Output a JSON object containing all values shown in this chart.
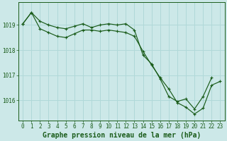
{
  "title": "Graphe pression niveau de la mer (hPa)",
  "bg_color": "#cce8e8",
  "grid_color": "#b0d8d8",
  "line_color": "#1a5c1a",
  "xlim": [
    -0.5,
    23.5
  ],
  "ylim": [
    1015.2,
    1019.9
  ],
  "yticks": [
    1016,
    1017,
    1018,
    1019
  ],
  "xticks": [
    0,
    1,
    2,
    3,
    4,
    5,
    6,
    7,
    8,
    9,
    10,
    11,
    12,
    13,
    14,
    15,
    16,
    17,
    18,
    19,
    20,
    21,
    22,
    23
  ],
  "series1_x": [
    0,
    1,
    2,
    3,
    4,
    5,
    6,
    7,
    8,
    9,
    10,
    11,
    12,
    13,
    14,
    15,
    16,
    17,
    18,
    19,
    20,
    21,
    22
  ],
  "series1_y": [
    1019.05,
    1019.5,
    1019.15,
    1019.0,
    1018.9,
    1018.85,
    1018.95,
    1019.05,
    1018.9,
    1019.0,
    1019.05,
    1019.0,
    1019.05,
    1018.8,
    1017.8,
    1017.45,
    1016.85,
    1016.15,
    1015.95,
    1016.05,
    1015.65,
    1016.15,
    1016.9
  ],
  "series2_x": [
    0,
    1,
    2,
    3,
    4,
    5,
    6,
    7,
    8,
    9,
    10,
    11,
    12,
    13,
    14,
    15,
    16,
    17,
    18,
    19,
    20,
    21,
    22,
    23
  ],
  "series2_y": [
    1019.05,
    1019.5,
    1018.85,
    1018.7,
    1018.55,
    1018.5,
    1018.65,
    1018.8,
    1018.8,
    1018.75,
    1018.8,
    1018.75,
    1018.7,
    1018.55,
    1017.95,
    1017.4,
    1016.9,
    1016.45,
    1015.9,
    1015.72,
    1015.45,
    1015.68,
    1016.6,
    1016.75
  ],
  "tick_fontsize": 5.5,
  "title_fontsize": 7.0,
  "spine_color": "#1a5c1a"
}
